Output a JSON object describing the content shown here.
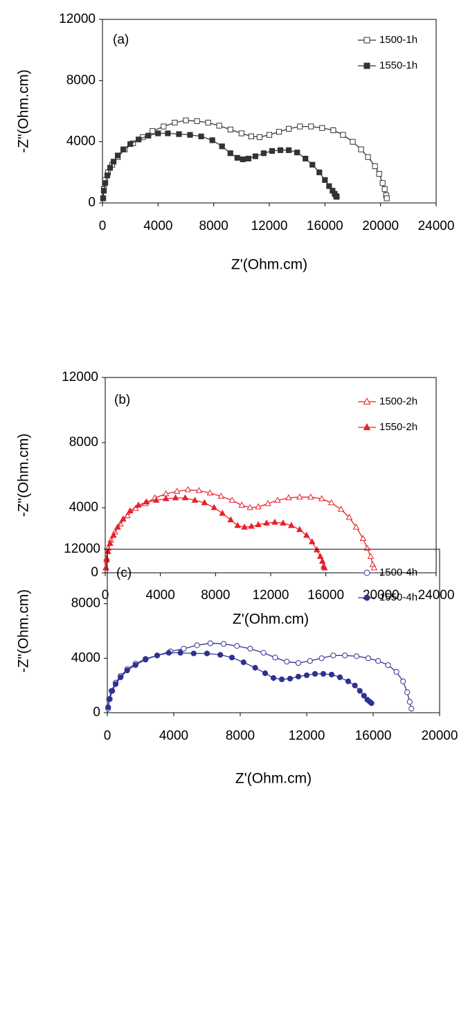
{
  "chart_data": [
    {
      "type": "line",
      "label": "(a)",
      "xlabel": "Z'(Ohm.cm)",
      "ylabel": "-Z\"(Ohm.cm)",
      "xlim": [
        0,
        24000
      ],
      "ylim": [
        0,
        12000
      ],
      "xticks": [
        0,
        4000,
        8000,
        12000,
        16000,
        20000,
        24000
      ],
      "yticks": [
        0,
        4000,
        8000,
        12000
      ],
      "series": [
        {
          "name": "1500-1h",
          "color": "#333333",
          "marker": "square",
          "filled": false,
          "x": [
            50,
            100,
            200,
            400,
            700,
            1100,
            1600,
            2200,
            2900,
            3600,
            4400,
            5200,
            6000,
            6800,
            7600,
            8400,
            9200,
            10000,
            10700,
            11300,
            12000,
            12700,
            13400,
            14200,
            15000,
            15800,
            16600,
            17300,
            18000,
            18600,
            19100,
            19600,
            19900,
            20150,
            20300,
            20400,
            20450
          ],
          "values": [
            300,
            900,
            1500,
            2000,
            2500,
            3000,
            3500,
            3900,
            4300,
            4700,
            5000,
            5250,
            5400,
            5350,
            5250,
            5050,
            4800,
            4550,
            4350,
            4300,
            4450,
            4650,
            4850,
            5000,
            5000,
            4900,
            4750,
            4450,
            4000,
            3500,
            3000,
            2400,
            1900,
            1300,
            900,
            500,
            300
          ]
        },
        {
          "name": "1550-1h",
          "color": "#333333",
          "marker": "square",
          "filled": true,
          "x": [
            50,
            100,
            200,
            350,
            550,
            800,
            1100,
            1500,
            2000,
            2600,
            3300,
            4000,
            4700,
            5500,
            6300,
            7100,
            7900,
            8600,
            9200,
            9700,
            10100,
            10500,
            11000,
            11600,
            12200,
            12800,
            13400,
            14000,
            14600,
            15100,
            15600,
            16000,
            16300,
            16550,
            16700,
            16800,
            16850
          ],
          "values": [
            300,
            800,
            1300,
            1800,
            2300,
            2700,
            3100,
            3500,
            3850,
            4150,
            4400,
            4550,
            4550,
            4500,
            4450,
            4350,
            4100,
            3700,
            3250,
            2950,
            2850,
            2900,
            3050,
            3250,
            3400,
            3450,
            3450,
            3300,
            2900,
            2500,
            2000,
            1500,
            1100,
            800,
            600,
            450,
            400
          ]
        }
      ]
    },
    {
      "type": "line",
      "label": "(b)",
      "xlabel": "Z'(Ohm.cm)",
      "ylabel": "-Z\"(Ohm.cm)",
      "xlim": [
        0,
        24000
      ],
      "ylim": [
        0,
        12000
      ],
      "xticks": [
        0,
        4000,
        8000,
        12000,
        16000,
        20000,
        24000
      ],
      "yticks": [
        0,
        4000,
        8000,
        12000
      ],
      "series": [
        {
          "name": "1500-2h",
          "color": "#e8202a",
          "marker": "triangle",
          "filled": false,
          "x": [
            50,
            100,
            200,
            400,
            700,
            1100,
            1600,
            2200,
            2900,
            3600,
            4400,
            5200,
            6000,
            6800,
            7600,
            8400,
            9200,
            9900,
            10500,
            11100,
            11800,
            12500,
            13300,
            14100,
            14900,
            15700,
            16400,
            17100,
            17700,
            18200,
            18700,
            19000,
            19250,
            19400,
            19500
          ],
          "values": [
            300,
            900,
            1500,
            2000,
            2500,
            3000,
            3500,
            3950,
            4250,
            4600,
            4850,
            5000,
            5100,
            5050,
            4900,
            4700,
            4450,
            4150,
            4000,
            4050,
            4250,
            4450,
            4600,
            4650,
            4650,
            4550,
            4300,
            3900,
            3400,
            2800,
            2100,
            1500,
            1000,
            500,
            300
          ]
        },
        {
          "name": "1550-2h",
          "color": "#e8202a",
          "marker": "triangle",
          "filled": true,
          "x": [
            50,
            100,
            200,
            350,
            600,
            900,
            1300,
            1800,
            2400,
            3000,
            3700,
            4400,
            5100,
            5800,
            6500,
            7200,
            7900,
            8500,
            9100,
            9600,
            10100,
            10600,
            11100,
            11700,
            12300,
            12900,
            13500,
            14100,
            14600,
            15000,
            15350,
            15600,
            15750,
            15850,
            15900
          ],
          "values": [
            300,
            800,
            1300,
            1800,
            2300,
            2800,
            3300,
            3800,
            4150,
            4350,
            4450,
            4550,
            4600,
            4600,
            4450,
            4300,
            4000,
            3650,
            3250,
            2900,
            2800,
            2850,
            2950,
            3050,
            3100,
            3050,
            2900,
            2650,
            2300,
            1900,
            1400,
            1000,
            700,
            400,
            300
          ]
        }
      ]
    },
    {
      "type": "line",
      "label": "(c)",
      "xlabel": "Z'(Ohm.cm)",
      "ylabel": "-Z\"(Ohm.cm)",
      "xlim": [
        0,
        20000
      ],
      "ylim": [
        0,
        12000
      ],
      "xticks": [
        0,
        4000,
        8000,
        12000,
        16000,
        20000
      ],
      "yticks": [
        0,
        4000,
        8000,
        12000
      ],
      "series": [
        {
          "name": "1500-4h",
          "color": "#2e3192",
          "marker": "circle",
          "filled": false,
          "x": [
            50,
            100,
            250,
            500,
            800,
            1200,
            1700,
            2300,
            3000,
            3800,
            4600,
            5400,
            6200,
            7000,
            7800,
            8600,
            9400,
            10100,
            10800,
            11500,
            12200,
            12900,
            13600,
            14300,
            15000,
            15700,
            16300,
            16900,
            17400,
            17800,
            18050,
            18200,
            18300
          ],
          "values": [
            300,
            1000,
            1600,
            2200,
            2700,
            3200,
            3600,
            3950,
            4200,
            4500,
            4700,
            4950,
            5100,
            5050,
            4900,
            4700,
            4400,
            4050,
            3750,
            3650,
            3800,
            4000,
            4200,
            4200,
            4150,
            4000,
            3800,
            3500,
            3000,
            2300,
            1500,
            800,
            300
          ]
        },
        {
          "name": "1550-4h",
          "color": "#2e3192",
          "marker": "circle",
          "filled": true,
          "x": [
            50,
            150,
            300,
            500,
            800,
            1200,
            1700,
            2300,
            3000,
            3700,
            4400,
            5200,
            6000,
            6800,
            7500,
            8200,
            8900,
            9500,
            10000,
            10500,
            11000,
            11500,
            12000,
            12500,
            13000,
            13500,
            14000,
            14500,
            14900,
            15200,
            15450,
            15650,
            15800,
            15900
          ],
          "values": [
            400,
            1000,
            1600,
            2100,
            2600,
            3100,
            3500,
            3900,
            4200,
            4400,
            4400,
            4350,
            4350,
            4250,
            4050,
            3700,
            3300,
            2900,
            2550,
            2450,
            2500,
            2650,
            2750,
            2850,
            2850,
            2800,
            2600,
            2300,
            2000,
            1600,
            1250,
            950,
            800,
            700
          ]
        }
      ]
    }
  ]
}
